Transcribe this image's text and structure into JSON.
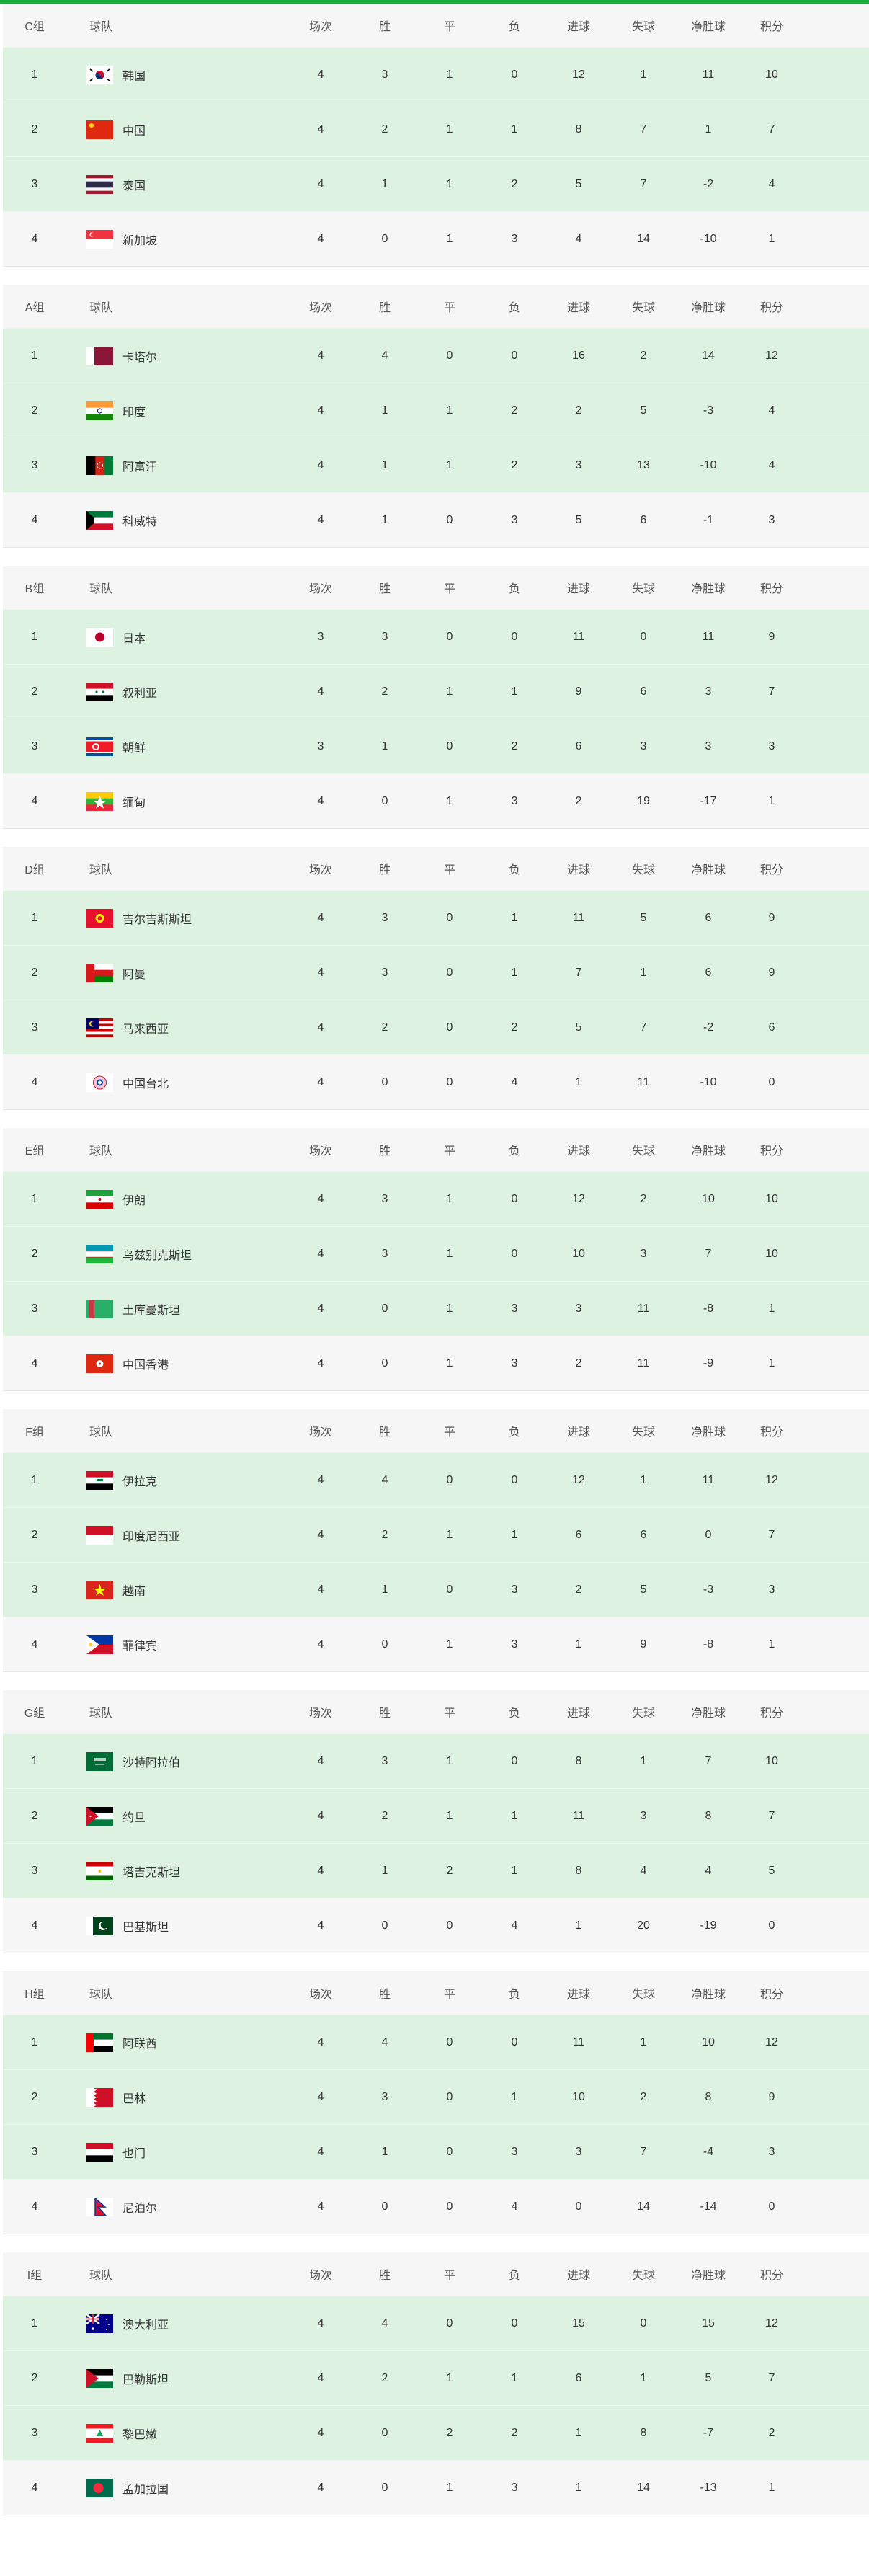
{
  "colors": {
    "accent": "#1aaf3c",
    "qualified_row": "#ddf2e1",
    "other_row": "#f6f6f6"
  },
  "columns": {
    "team": "球队",
    "played": "场次",
    "won": "胜",
    "drawn": "平",
    "lost": "负",
    "gf": "进球",
    "ga": "失球",
    "gd": "净胜球",
    "pts": "积分"
  },
  "groups": [
    {
      "label": "C组",
      "rows": [
        {
          "rank": "1",
          "flag": "kr",
          "team": "韩国",
          "p": "4",
          "w": "3",
          "d": "1",
          "l": "0",
          "gf": "12",
          "ga": "1",
          "gd": "11",
          "pts": "10"
        },
        {
          "rank": "2",
          "flag": "cn",
          "team": "中国",
          "p": "4",
          "w": "2",
          "d": "1",
          "l": "1",
          "gf": "8",
          "ga": "7",
          "gd": "1",
          "pts": "7"
        },
        {
          "rank": "3",
          "flag": "th",
          "team": "泰国",
          "p": "4",
          "w": "1",
          "d": "1",
          "l": "2",
          "gf": "5",
          "ga": "7",
          "gd": "-2",
          "pts": "4"
        },
        {
          "rank": "4",
          "flag": "sg",
          "team": "新加坡",
          "p": "4",
          "w": "0",
          "d": "1",
          "l": "3",
          "gf": "4",
          "ga": "14",
          "gd": "-10",
          "pts": "1"
        }
      ]
    },
    {
      "label": "A组",
      "rows": [
        {
          "rank": "1",
          "flag": "qa",
          "team": "卡塔尔",
          "p": "4",
          "w": "4",
          "d": "0",
          "l": "0",
          "gf": "16",
          "ga": "2",
          "gd": "14",
          "pts": "12"
        },
        {
          "rank": "2",
          "flag": "in",
          "team": "印度",
          "p": "4",
          "w": "1",
          "d": "1",
          "l": "2",
          "gf": "2",
          "ga": "5",
          "gd": "-3",
          "pts": "4"
        },
        {
          "rank": "3",
          "flag": "af",
          "team": "阿富汗",
          "p": "4",
          "w": "1",
          "d": "1",
          "l": "2",
          "gf": "3",
          "ga": "13",
          "gd": "-10",
          "pts": "4"
        },
        {
          "rank": "4",
          "flag": "kw",
          "team": "科威特",
          "p": "4",
          "w": "1",
          "d": "0",
          "l": "3",
          "gf": "5",
          "ga": "6",
          "gd": "-1",
          "pts": "3"
        }
      ]
    },
    {
      "label": "B组",
      "rows": [
        {
          "rank": "1",
          "flag": "jp",
          "team": "日本",
          "p": "3",
          "w": "3",
          "d": "0",
          "l": "0",
          "gf": "11",
          "ga": "0",
          "gd": "11",
          "pts": "9"
        },
        {
          "rank": "2",
          "flag": "sy",
          "team": "叙利亚",
          "p": "4",
          "w": "2",
          "d": "1",
          "l": "1",
          "gf": "9",
          "ga": "6",
          "gd": "3",
          "pts": "7"
        },
        {
          "rank": "3",
          "flag": "kp",
          "team": "朝鲜",
          "p": "3",
          "w": "1",
          "d": "0",
          "l": "2",
          "gf": "6",
          "ga": "3",
          "gd": "3",
          "pts": "3"
        },
        {
          "rank": "4",
          "flag": "mm",
          "team": "缅甸",
          "p": "4",
          "w": "0",
          "d": "1",
          "l": "3",
          "gf": "2",
          "ga": "19",
          "gd": "-17",
          "pts": "1"
        }
      ]
    },
    {
      "label": "D组",
      "rows": [
        {
          "rank": "1",
          "flag": "kg",
          "team": "吉尔吉斯斯坦",
          "p": "4",
          "w": "3",
          "d": "0",
          "l": "1",
          "gf": "11",
          "ga": "5",
          "gd": "6",
          "pts": "9"
        },
        {
          "rank": "2",
          "flag": "om",
          "team": "阿曼",
          "p": "4",
          "w": "3",
          "d": "0",
          "l": "1",
          "gf": "7",
          "ga": "1",
          "gd": "6",
          "pts": "9"
        },
        {
          "rank": "3",
          "flag": "my",
          "team": "马来西亚",
          "p": "4",
          "w": "2",
          "d": "0",
          "l": "2",
          "gf": "5",
          "ga": "7",
          "gd": "-2",
          "pts": "6"
        },
        {
          "rank": "4",
          "flag": "tpe",
          "team": "中国台北",
          "p": "4",
          "w": "0",
          "d": "0",
          "l": "4",
          "gf": "1",
          "ga": "11",
          "gd": "-10",
          "pts": "0"
        }
      ]
    },
    {
      "label": "E组",
      "rows": [
        {
          "rank": "1",
          "flag": "ir",
          "team": "伊朗",
          "p": "4",
          "w": "3",
          "d": "1",
          "l": "0",
          "gf": "12",
          "ga": "2",
          "gd": "10",
          "pts": "10"
        },
        {
          "rank": "2",
          "flag": "uz",
          "team": "乌兹别克斯坦",
          "p": "4",
          "w": "3",
          "d": "1",
          "l": "0",
          "gf": "10",
          "ga": "3",
          "gd": "7",
          "pts": "10"
        },
        {
          "rank": "3",
          "flag": "tm",
          "team": "土库曼斯坦",
          "p": "4",
          "w": "0",
          "d": "1",
          "l": "3",
          "gf": "3",
          "ga": "11",
          "gd": "-8",
          "pts": "1"
        },
        {
          "rank": "4",
          "flag": "hk",
          "team": "中国香港",
          "p": "4",
          "w": "0",
          "d": "1",
          "l": "3",
          "gf": "2",
          "ga": "11",
          "gd": "-9",
          "pts": "1"
        }
      ]
    },
    {
      "label": "F组",
      "rows": [
        {
          "rank": "1",
          "flag": "iq",
          "team": "伊拉克",
          "p": "4",
          "w": "4",
          "d": "0",
          "l": "0",
          "gf": "12",
          "ga": "1",
          "gd": "11",
          "pts": "12"
        },
        {
          "rank": "2",
          "flag": "id",
          "team": "印度尼西亚",
          "p": "4",
          "w": "2",
          "d": "1",
          "l": "1",
          "gf": "6",
          "ga": "6",
          "gd": "0",
          "pts": "7"
        },
        {
          "rank": "3",
          "flag": "vn",
          "team": "越南",
          "p": "4",
          "w": "1",
          "d": "0",
          "l": "3",
          "gf": "2",
          "ga": "5",
          "gd": "-3",
          "pts": "3"
        },
        {
          "rank": "4",
          "flag": "ph",
          "team": "菲律宾",
          "p": "4",
          "w": "0",
          "d": "1",
          "l": "3",
          "gf": "1",
          "ga": "9",
          "gd": "-8",
          "pts": "1"
        }
      ]
    },
    {
      "label": "G组",
      "rows": [
        {
          "rank": "1",
          "flag": "sa",
          "team": "沙特阿拉伯",
          "p": "4",
          "w": "3",
          "d": "1",
          "l": "0",
          "gf": "8",
          "ga": "1",
          "gd": "7",
          "pts": "10"
        },
        {
          "rank": "2",
          "flag": "jo",
          "team": "约旦",
          "p": "4",
          "w": "2",
          "d": "1",
          "l": "1",
          "gf": "11",
          "ga": "3",
          "gd": "8",
          "pts": "7"
        },
        {
          "rank": "3",
          "flag": "tj",
          "team": "塔吉克斯坦",
          "p": "4",
          "w": "1",
          "d": "2",
          "l": "1",
          "gf": "8",
          "ga": "4",
          "gd": "4",
          "pts": "5"
        },
        {
          "rank": "4",
          "flag": "pk",
          "team": "巴基斯坦",
          "p": "4",
          "w": "0",
          "d": "0",
          "l": "4",
          "gf": "1",
          "ga": "20",
          "gd": "-19",
          "pts": "0"
        }
      ]
    },
    {
      "label": "H组",
      "rows": [
        {
          "rank": "1",
          "flag": "ae",
          "team": "阿联酋",
          "p": "4",
          "w": "4",
          "d": "0",
          "l": "0",
          "gf": "11",
          "ga": "1",
          "gd": "10",
          "pts": "12"
        },
        {
          "rank": "2",
          "flag": "bh",
          "team": "巴林",
          "p": "4",
          "w": "3",
          "d": "0",
          "l": "1",
          "gf": "10",
          "ga": "2",
          "gd": "8",
          "pts": "9"
        },
        {
          "rank": "3",
          "flag": "ye",
          "team": "也门",
          "p": "4",
          "w": "1",
          "d": "0",
          "l": "3",
          "gf": "3",
          "ga": "7",
          "gd": "-4",
          "pts": "3"
        },
        {
          "rank": "4",
          "flag": "np",
          "team": "尼泊尔",
          "p": "4",
          "w": "0",
          "d": "0",
          "l": "4",
          "gf": "0",
          "ga": "14",
          "gd": "-14",
          "pts": "0"
        }
      ]
    },
    {
      "label": "I组",
      "rows": [
        {
          "rank": "1",
          "flag": "au",
          "team": "澳大利亚",
          "p": "4",
          "w": "4",
          "d": "0",
          "l": "0",
          "gf": "15",
          "ga": "0",
          "gd": "15",
          "pts": "12"
        },
        {
          "rank": "2",
          "flag": "ps",
          "team": "巴勒斯坦",
          "p": "4",
          "w": "2",
          "d": "1",
          "l": "1",
          "gf": "6",
          "ga": "1",
          "gd": "5",
          "pts": "7"
        },
        {
          "rank": "3",
          "flag": "lb",
          "team": "黎巴嫩",
          "p": "4",
          "w": "0",
          "d": "2",
          "l": "2",
          "gf": "1",
          "ga": "8",
          "gd": "-7",
          "pts": "2"
        },
        {
          "rank": "4",
          "flag": "bd",
          "team": "孟加拉国",
          "p": "4",
          "w": "0",
          "d": "1",
          "l": "3",
          "gf": "1",
          "ga": "14",
          "gd": "-13",
          "pts": "1"
        }
      ]
    }
  ]
}
